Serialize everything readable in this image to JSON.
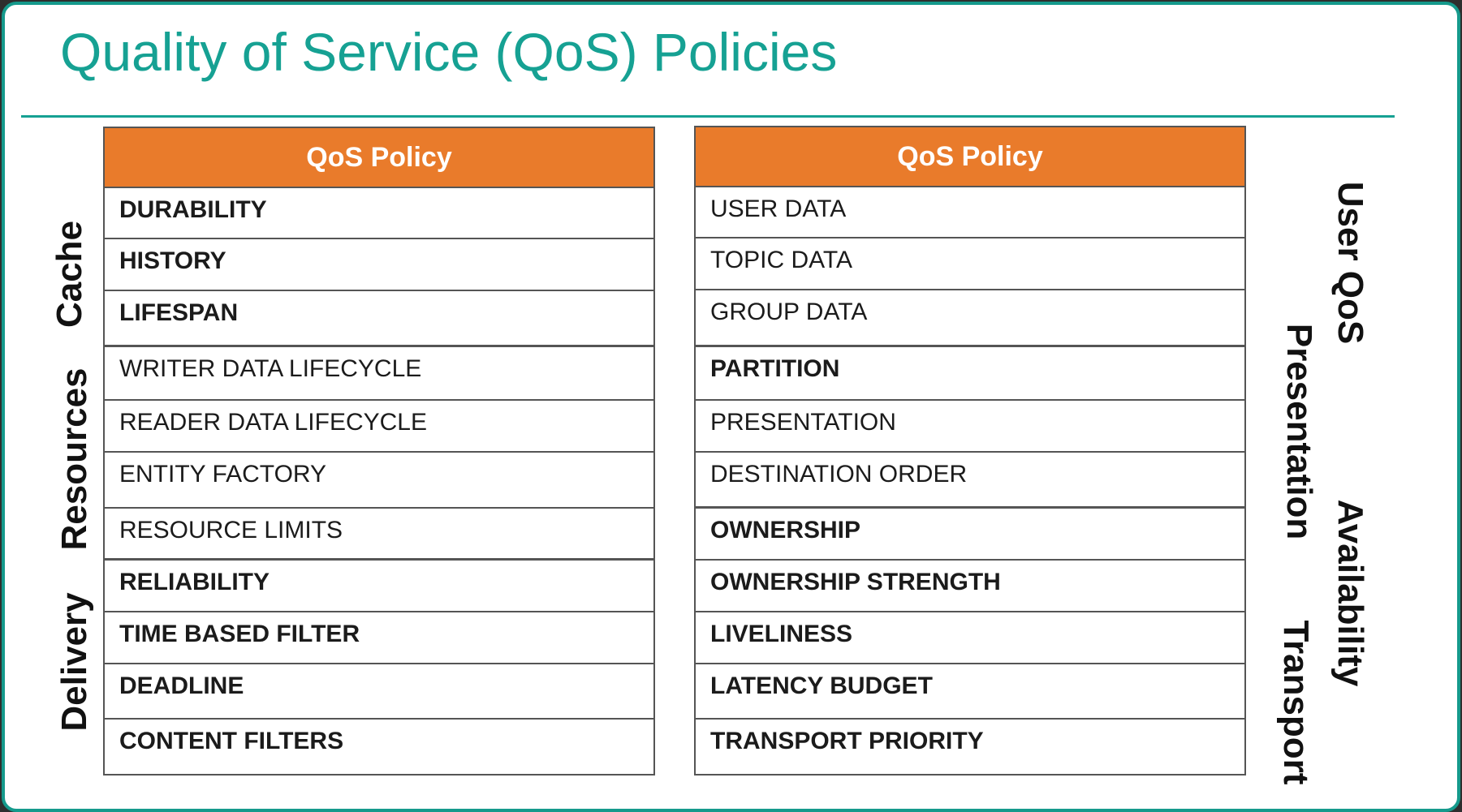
{
  "title": "Quality of Service (QoS) Policies",
  "colors": {
    "accent": "#16a193",
    "header": "#e97b2b"
  },
  "left_table": {
    "header": "QoS Policy",
    "rows": [
      {
        "label": "DURABILITY",
        "bold": true
      },
      {
        "label": "HISTORY",
        "bold": true
      },
      {
        "label": "LIFESPAN",
        "bold": true
      },
      {
        "label": "WRITER DATA LIFECYCLE",
        "bold": false
      },
      {
        "label": "READER DATA LIFECYCLE",
        "bold": false
      },
      {
        "label": "ENTITY FACTORY",
        "bold": false
      },
      {
        "label": "RESOURCE LIMITS",
        "bold": false
      },
      {
        "label": "RELIABILITY",
        "bold": true
      },
      {
        "label": "TIME BASED FILTER",
        "bold": true
      },
      {
        "label": "DEADLINE",
        "bold": true
      },
      {
        "label": "CONTENT FILTERS",
        "bold": true
      }
    ]
  },
  "right_table": {
    "header": "QoS Policy",
    "rows": [
      {
        "label": "USER DATA",
        "bold": false
      },
      {
        "label": "TOPIC DATA",
        "bold": false
      },
      {
        "label": "GROUP DATA",
        "bold": false
      },
      {
        "label": "PARTITION",
        "bold": true
      },
      {
        "label": "PRESENTATION",
        "bold": false
      },
      {
        "label": "DESTINATION ORDER",
        "bold": false
      },
      {
        "label": "OWNERSHIP",
        "bold": true
      },
      {
        "label": "OWNERSHIP STRENGTH",
        "bold": true
      },
      {
        "label": "LIVELINESS",
        "bold": true
      },
      {
        "label": "LATENCY BUDGET",
        "bold": true
      },
      {
        "label": "TRANSPORT PRIORITY",
        "bold": true
      }
    ]
  },
  "left_groups": {
    "cache": "Cache",
    "resources": "Resources",
    "delivery": "Delivery"
  },
  "right_groups": {
    "user_qos": "User QoS",
    "presentation": "Presentation",
    "availability": "Availability",
    "transport": "Transport"
  }
}
